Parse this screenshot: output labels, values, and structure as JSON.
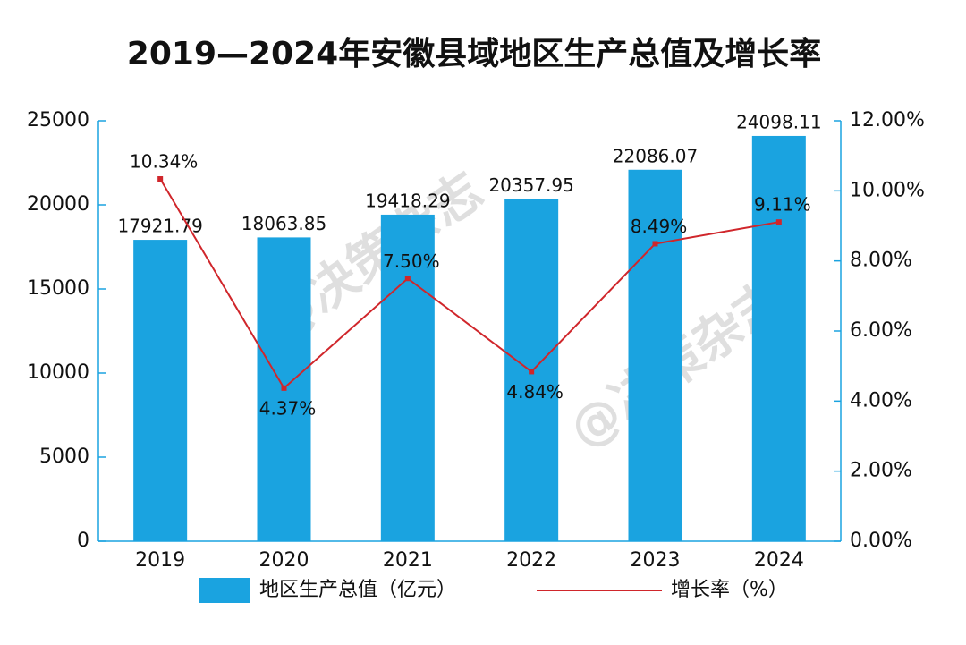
{
  "chart_data": {
    "type": "bar-line",
    "title": "2019—2024年安徽县域地区生产总值及增长率",
    "watermark": "@决策杂志",
    "categories": [
      "2019",
      "2020",
      "2021",
      "2022",
      "2023",
      "2024"
    ],
    "series": [
      {
        "name": "地区生产总值（亿元）",
        "type": "bar",
        "color": "#1aa3e0",
        "values": [
          17921.79,
          18063.85,
          19418.29,
          20357.95,
          22086.07,
          24098.11
        ]
      },
      {
        "name": "增长率（%）",
        "type": "line",
        "axis": "y2",
        "color": "#d0262b",
        "values": [
          10.34,
          4.37,
          7.5,
          4.84,
          8.49,
          9.11
        ],
        "value_labels": [
          "10.34%",
          "4.37%",
          "7.50%",
          "4.84%",
          "8.49%",
          "9.11%"
        ]
      }
    ],
    "ylim": [
      0,
      25000
    ],
    "yticks": [
      0,
      5000,
      10000,
      15000,
      20000,
      25000
    ],
    "y2lim": [
      0,
      12
    ],
    "y2ticks": [
      {
        "value": 0,
        "label": "0.00%"
      },
      {
        "value": 2,
        "label": "2.00%"
      },
      {
        "value": 4,
        "label": "4.00%"
      },
      {
        "value": 6,
        "label": "6.00%"
      },
      {
        "value": 8,
        "label": "8.00%"
      },
      {
        "value": 10,
        "label": "10.00%"
      },
      {
        "value": 12,
        "label": "12.00%"
      }
    ],
    "axis_color": "#1aa3e0"
  }
}
